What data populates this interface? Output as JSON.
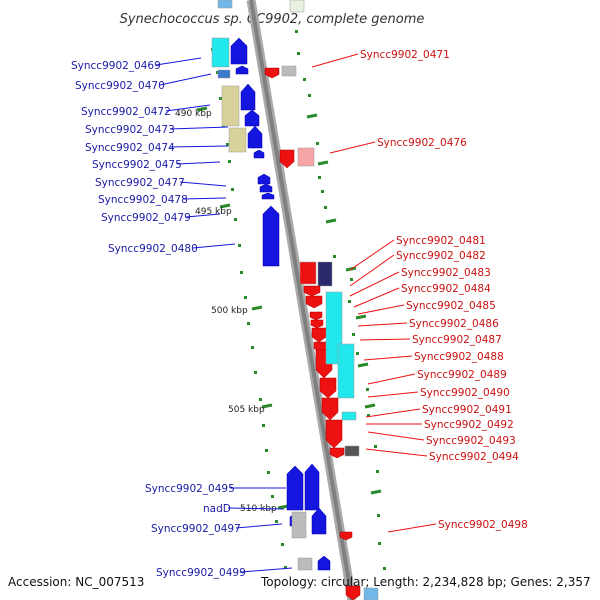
{
  "title": "Synechococcus sp. CC9902, complete genome",
  "footer": {
    "accession": "Accession: NC_007513",
    "topology": "Topology: circular; Length: 2,234,828 bp; Genes: 2,357"
  },
  "colors": {
    "forward_gene": "#1515e0",
    "reverse_gene": "#ee1111",
    "forward_label": "#1a1aa6",
    "reverse_label": "#cc1111",
    "tick": "#2a8a2a",
    "cyan": "#22e8ee",
    "khaki": "#d8d29a",
    "gray": "#bbbbbb",
    "pink": "#f5a5a5",
    "light_blue": "#6fb8e8",
    "navy": "#2a2a6a"
  },
  "scale_labels": [
    "490 kbp",
    "495 kbp",
    "500 kbp",
    "505 kbp",
    "510 kbp"
  ],
  "forward_labels": [
    "Syncc9902_0469",
    "Syncc9902_0470",
    "Syncc9902_0472",
    "Syncc9902_0473",
    "Syncc9902_0474",
    "Syncc9902_0475",
    "Syncc9902_0477",
    "Syncc9902_0478",
    "Syncc9902_0479",
    "Syncc9902_0480",
    "Syncc9902_0495",
    "nadD",
    "Syncc9902_0497",
    "Syncc9902_0499"
  ],
  "reverse_labels": [
    "Syncc9902_0471",
    "Syncc9902_0476",
    "Syncc9902_0481",
    "Syncc9902_0482",
    "Syncc9902_0483",
    "Syncc9902_0484",
    "Syncc9902_0485",
    "Syncc9902_0486",
    "Syncc9902_0487",
    "Syncc9902_0488",
    "Syncc9902_0489",
    "Syncc9902_0490",
    "Syncc9902_0491",
    "Syncc9902_0492",
    "Syncc9902_0493",
    "Syncc9902_0494",
    "Syncc9902_0498"
  ]
}
